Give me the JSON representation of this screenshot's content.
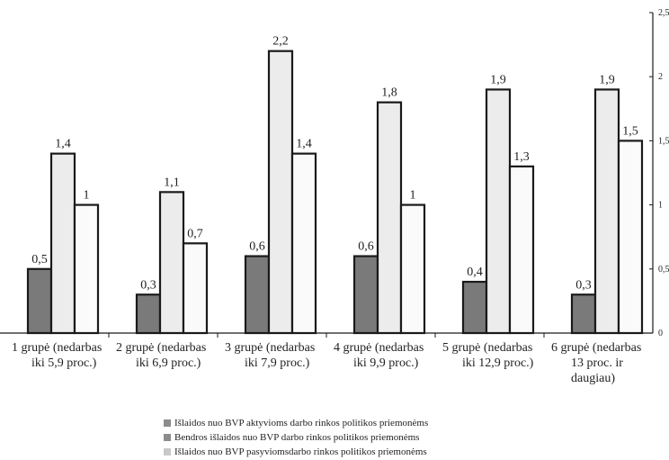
{
  "chart_data": {
    "type": "bar",
    "categories": [
      [
        "1 grupė (nedarbas",
        "iki 5,9 proc.)"
      ],
      [
        "2 grupė (nedarbas",
        "iki 6,9 proc.)"
      ],
      [
        "3 grupė (nedarbas",
        "iki 7,9 proc.)"
      ],
      [
        "4 grupė (nedarbas",
        "iki 9,9 proc.)"
      ],
      [
        "5 grupė (nedarbas",
        "iki 12,9 proc.)"
      ],
      [
        "6 grupė (nedarbas",
        "13 proc. ir",
        "daugiau)"
      ]
    ],
    "series": [
      {
        "name": "Išlaidos nuo BVP aktyvioms darbo rinkos politikos priemonėms",
        "values": [
          0.5,
          0.3,
          0.6,
          0.6,
          0.4,
          0.3
        ],
        "labels": [
          "0,5",
          "0,3",
          "0,6",
          "0,6",
          "0,4",
          "0,3"
        ],
        "color": "#7a7a7a"
      },
      {
        "name": "Bendros išlaidos nuo BVP darbo rinkos politikos priemonėms",
        "values": [
          1.4,
          1.1,
          2.2,
          1.8,
          1.9,
          1.9
        ],
        "labels": [
          "1,4",
          "1,1",
          "2,2",
          "1,8",
          "1,9",
          "1,9"
        ],
        "color": "#ececec"
      },
      {
        "name": "Išlaidos nuo BVP pasyviomsdarbo rinkos politikos priemonėms",
        "values": [
          1.0,
          0.7,
          1.4,
          1.0,
          1.3,
          1.5
        ],
        "labels": [
          "1",
          "0,7",
          "1,4",
          "1",
          "1,3",
          "1,5"
        ],
        "color": "#fafafa"
      }
    ],
    "legend_colors": [
      "#8c8c8c",
      "#8c8c8c",
      "#c8c8c8"
    ],
    "ylim": [
      0,
      2.5
    ],
    "yticks": [
      0,
      0.5,
      1,
      1.5,
      2,
      2.5
    ],
    "ytick_labels": [
      "0",
      "0,5",
      "1",
      "1,5",
      "2",
      "2,5"
    ],
    "y_axis_side": "right",
    "grid": false,
    "legend_position": "bottom"
  }
}
